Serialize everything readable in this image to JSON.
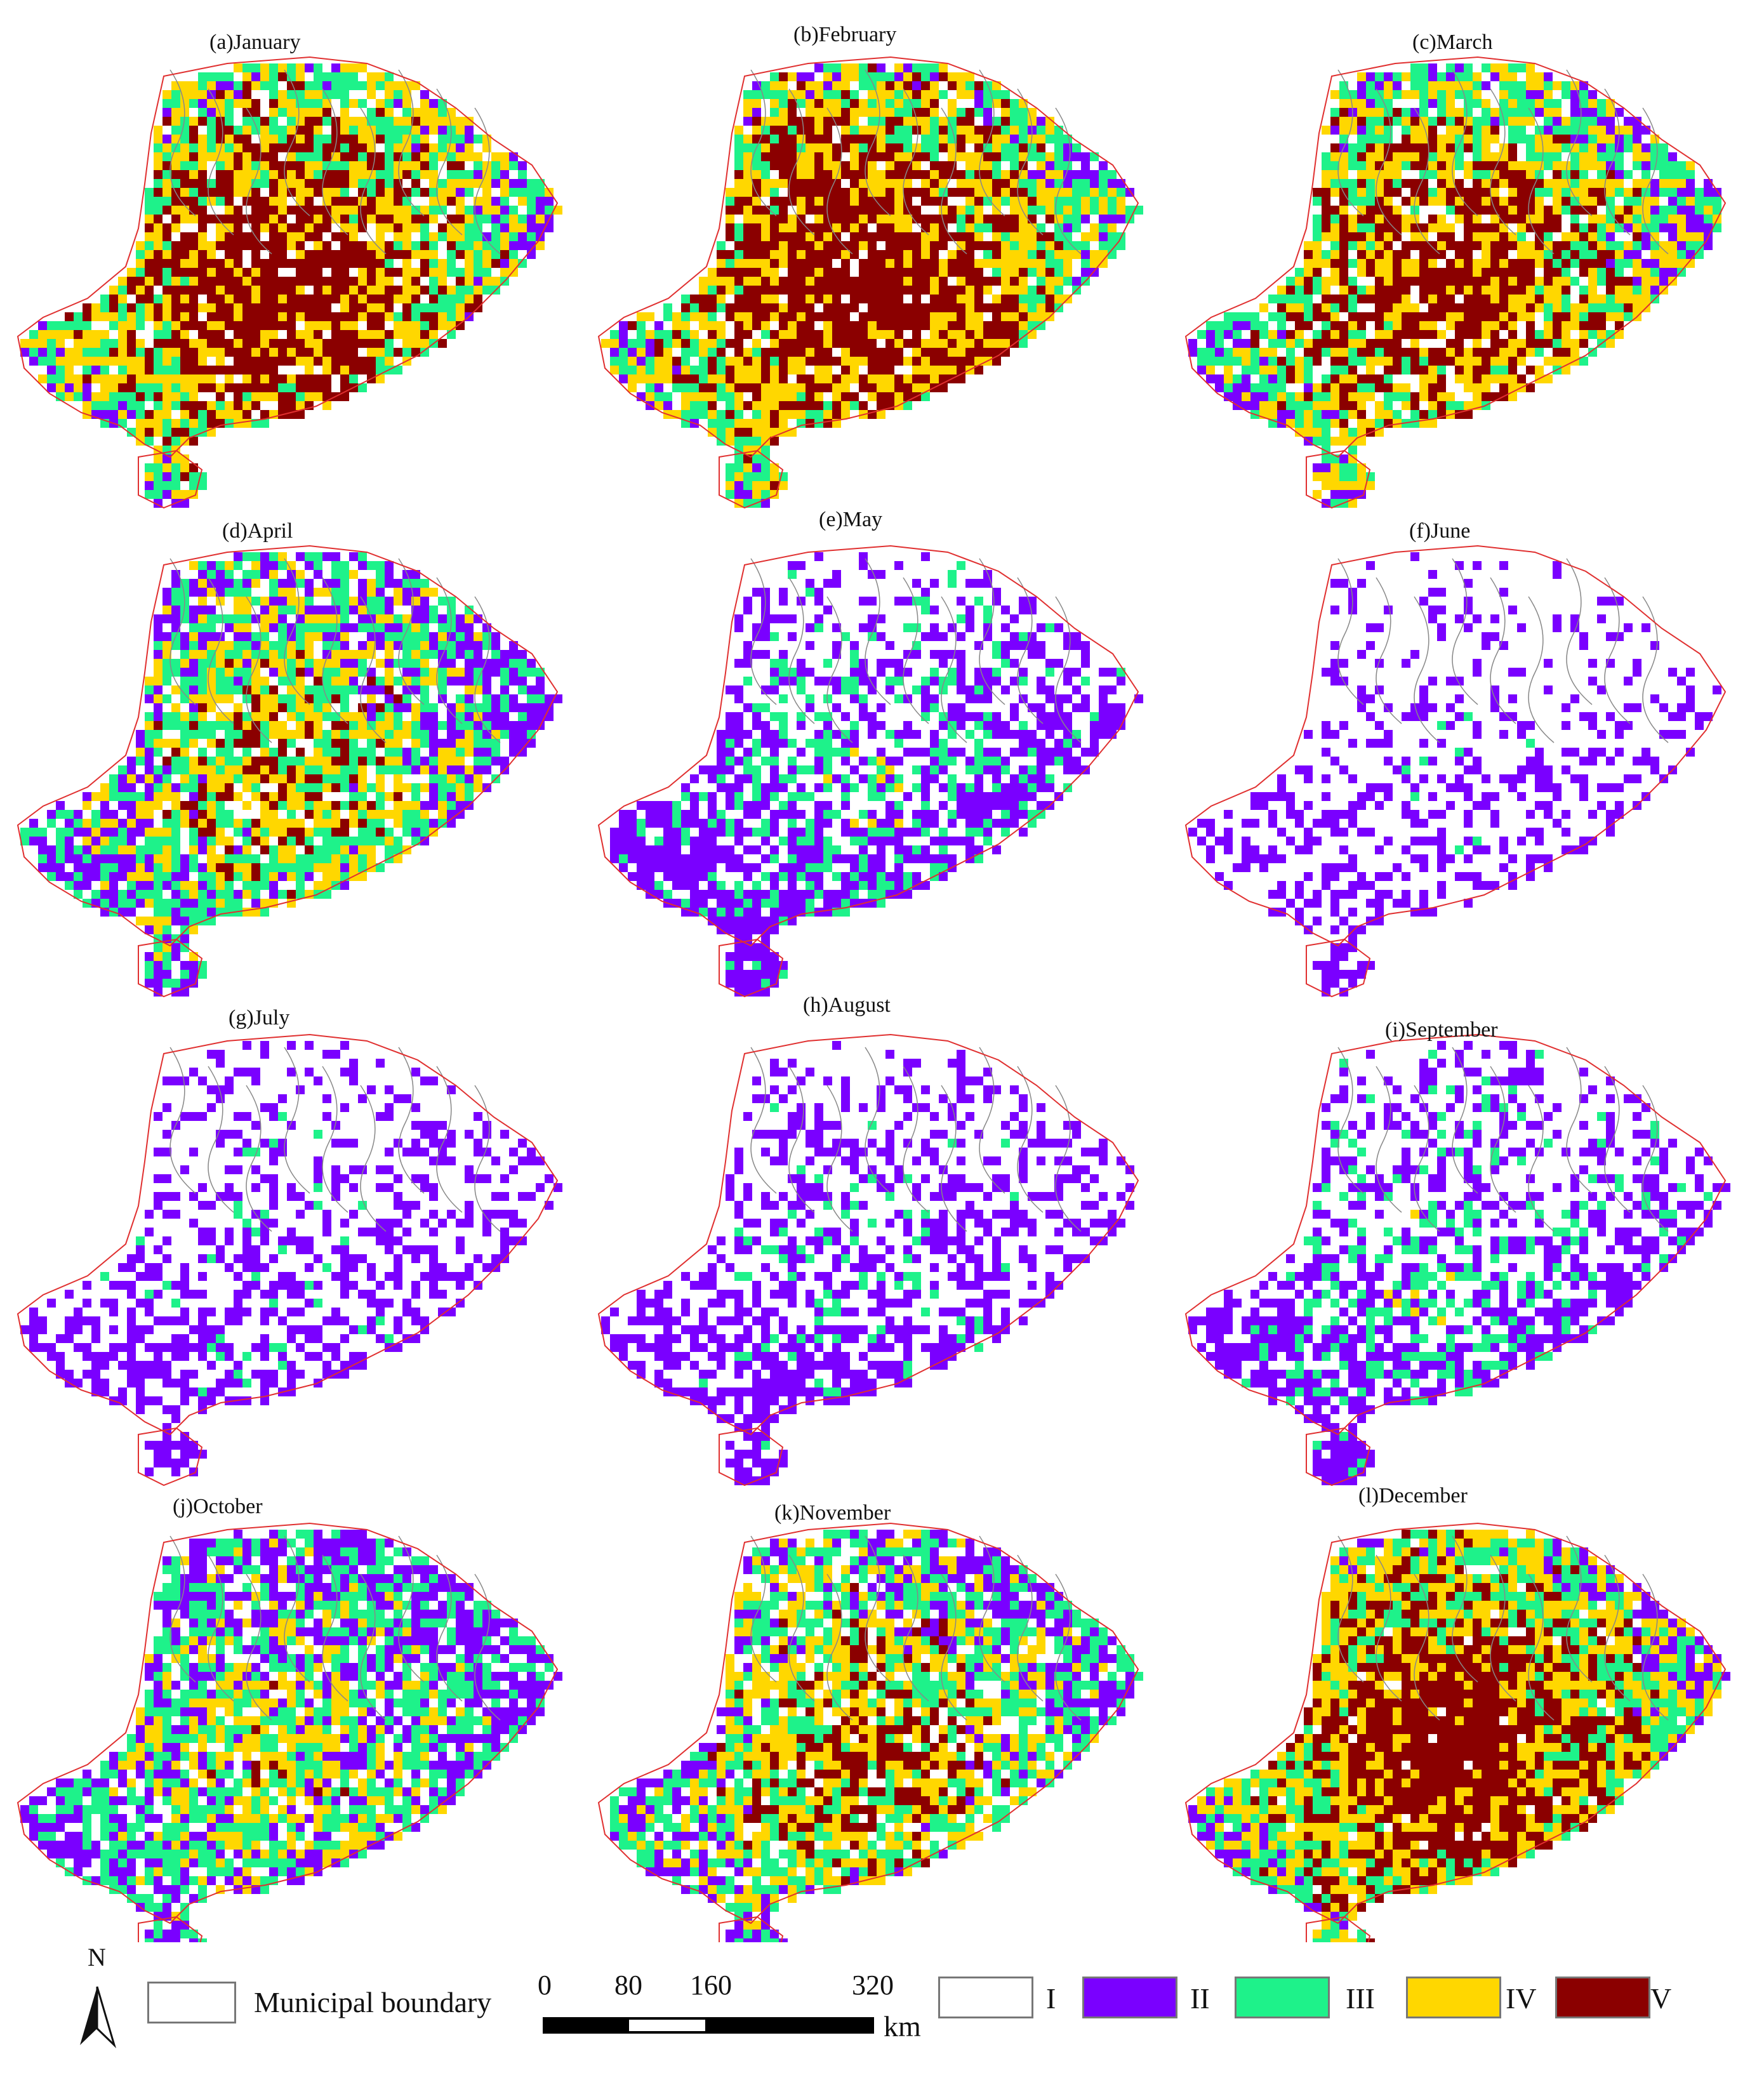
{
  "panels": [
    {
      "title": "(a)January",
      "month": 1
    },
    {
      "title": "(b)February",
      "month": 2
    },
    {
      "title": "(c)March",
      "month": 3
    },
    {
      "title": "(d)April",
      "month": 4
    },
    {
      "title": "(e)May",
      "month": 5
    },
    {
      "title": "(f)June",
      "month": 6
    },
    {
      "title": "(g)July",
      "month": 7
    },
    {
      "title": "(h)August",
      "month": 8
    },
    {
      "title": "(i)September",
      "month": 9
    },
    {
      "title": "(j)October",
      "month": 10
    },
    {
      "title": "(k)November",
      "month": 11
    },
    {
      "title": "(l)December",
      "month": 12
    }
  ],
  "legend": {
    "north_label": "N",
    "boundary_label": "Municipal boundary",
    "scale": {
      "ticks": [
        "0",
        "80",
        "160",
        "320"
      ],
      "unit": "km"
    },
    "classes": [
      {
        "label": "I",
        "color": "#ffffff"
      },
      {
        "label": "II",
        "color": "#7a00ff"
      },
      {
        "label": "III",
        "color": "#1ef28a"
      },
      {
        "label": "IV",
        "color": "#ffd700"
      },
      {
        "label": "V",
        "color": "#8b0000"
      }
    ]
  },
  "colors": {
    "province_boundary": "#e03030",
    "municipal_boundary": "#888888"
  }
}
